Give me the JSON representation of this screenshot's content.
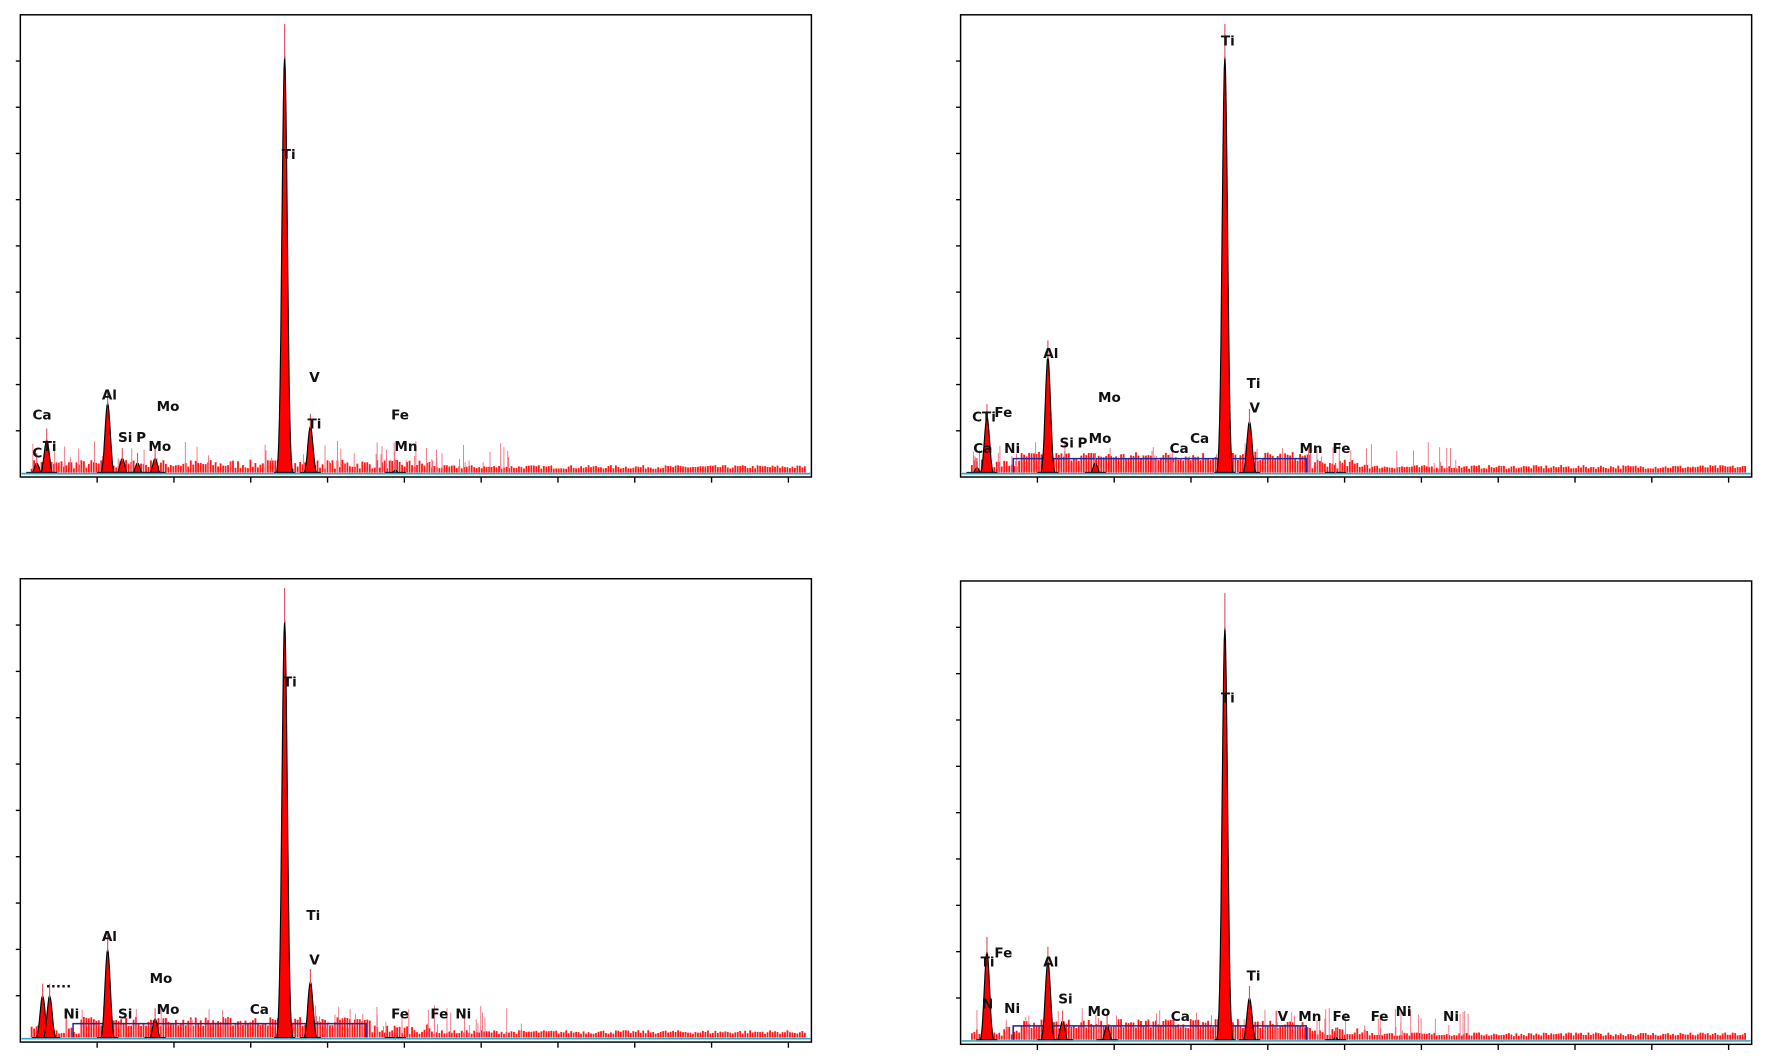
{
  "chart_data": [
    {
      "type": "area",
      "panel": "top-left",
      "xlim": [
        0,
        13.5
      ],
      "ylim": [
        0,
        1
      ],
      "grid": false,
      "colors": {
        "fill": "#ff0000",
        "outline": "#000000",
        "baseline": "#29a9c9",
        "continuum": "#1a2aa0"
      },
      "peaks": [
        {
          "x": 0.28,
          "y": 0.03
        },
        {
          "x": 0.45,
          "y": 0.08
        },
        {
          "x": 1.49,
          "y": 0.16
        },
        {
          "x": 1.74,
          "y": 0.04
        },
        {
          "x": 2.0,
          "y": 0.03
        },
        {
          "x": 2.3,
          "y": 0.04
        },
        {
          "x": 4.51,
          "y": 0.91
        },
        {
          "x": 4.95,
          "y": 0.11
        },
        {
          "x": 6.4,
          "y": 0.015
        }
      ],
      "labels": [
        {
          "text": "Ca",
          "x": 0.37,
          "y": 0.137
        },
        {
          "text": "Ti",
          "x": 0.5,
          "y": 0.068
        },
        {
          "text": "C",
          "x": 0.29,
          "y": 0.054
        },
        {
          "text": "Al",
          "x": 1.52,
          "y": 0.18
        },
        {
          "text": "Mo",
          "x": 2.52,
          "y": 0.155
        },
        {
          "text": "Si",
          "x": 1.79,
          "y": 0.088
        },
        {
          "text": "P",
          "x": 2.06,
          "y": 0.088
        },
        {
          "text": "Mo",
          "x": 2.38,
          "y": 0.068
        },
        {
          "text": "Ti",
          "x": 4.58,
          "y": 0.7
        },
        {
          "text": "V",
          "x": 5.02,
          "y": 0.218
        },
        {
          "text": "Ti",
          "x": 5.02,
          "y": 0.117
        },
        {
          "text": "Fe",
          "x": 6.48,
          "y": 0.137
        },
        {
          "text": "Mn",
          "x": 6.58,
          "y": 0.068
        }
      ]
    },
    {
      "type": "area",
      "panel": "top-right",
      "xlim": [
        0,
        13.5
      ],
      "ylim": [
        0,
        1
      ],
      "grid": false,
      "colors": {
        "fill": "#ff0000",
        "outline": "#000000",
        "baseline": "#29a9c9",
        "continuum": "#1a2aa0"
      },
      "peaks": [
        {
          "x": 0.28,
          "y": 0.02
        },
        {
          "x": 0.45,
          "y": 0.13
        },
        {
          "x": 1.49,
          "y": 0.26
        },
        {
          "x": 2.3,
          "y": 0.03
        },
        {
          "x": 4.51,
          "y": 0.91
        },
        {
          "x": 4.93,
          "y": 0.12
        },
        {
          "x": 6.4,
          "y": 0.01
        }
      ],
      "labels": [
        {
          "text": "Ti",
          "x": 4.56,
          "y": 0.946
        },
        {
          "text": "Al",
          "x": 1.54,
          "y": 0.27
        },
        {
          "text": "Mo",
          "x": 2.54,
          "y": 0.174
        },
        {
          "text": "Ti",
          "x": 5.0,
          "y": 0.205
        },
        {
          "text": "V",
          "x": 5.02,
          "y": 0.152
        },
        {
          "text": "CTi",
          "x": 0.4,
          "y": 0.132
        },
        {
          "text": "Fe",
          "x": 0.73,
          "y": 0.142
        },
        {
          "text": "Ca",
          "x": 0.38,
          "y": 0.064
        },
        {
          "text": "Ni",
          "x": 0.88,
          "y": 0.064
        },
        {
          "text": "Si",
          "x": 1.81,
          "y": 0.076
        },
        {
          "text": "P",
          "x": 2.08,
          "y": 0.076
        },
        {
          "text": "Mo",
          "x": 2.38,
          "y": 0.086
        },
        {
          "text": "Ca",
          "x": 3.73,
          "y": 0.064
        },
        {
          "text": "Ca",
          "x": 4.08,
          "y": 0.086
        },
        {
          "text": "Mn",
          "x": 5.98,
          "y": 0.064
        },
        {
          "text": "Fe",
          "x": 6.5,
          "y": 0.064
        }
      ]
    },
    {
      "type": "area",
      "panel": "bottom-left",
      "xlim": [
        0,
        13.5
      ],
      "ylim": [
        0,
        1
      ],
      "grid": false,
      "colors": {
        "fill": "#ff0000",
        "outline": "#000000",
        "baseline": "#29a9c9",
        "continuum": "#1a2aa0"
      },
      "peaks": [
        {
          "x": 0.38,
          "y": 0.1
        },
        {
          "x": 0.5,
          "y": 0.1
        },
        {
          "x": 1.49,
          "y": 0.2
        },
        {
          "x": 2.3,
          "y": 0.05
        },
        {
          "x": 4.51,
          "y": 0.91
        },
        {
          "x": 4.95,
          "y": 0.13
        },
        {
          "x": 6.4,
          "y": 0.01
        }
      ],
      "labels": [
        {
          "text": "Ti",
          "x": 4.6,
          "y": 0.78
        },
        {
          "text": "Ti",
          "x": 5.0,
          "y": 0.276
        },
        {
          "text": "V",
          "x": 5.02,
          "y": 0.18
        },
        {
          "text": "Al",
          "x": 1.52,
          "y": 0.23
        },
        {
          "text": "Mo",
          "x": 2.4,
          "y": 0.14
        },
        {
          "text": "Ni",
          "x": 0.87,
          "y": 0.063
        },
        {
          "text": "Si",
          "x": 1.79,
          "y": 0.063
        },
        {
          "text": "Mo",
          "x": 2.52,
          "y": 0.073
        },
        {
          "text": "Ca",
          "x": 4.08,
          "y": 0.073
        },
        {
          "text": "Fe",
          "x": 6.48,
          "y": 0.063
        },
        {
          "text": "Fe",
          "x": 7.15,
          "y": 0.063
        },
        {
          "text": "Ni",
          "x": 7.56,
          "y": 0.063
        },
        {
          "text": ".....",
          "x": 0.65,
          "y": 0.13
        }
      ]
    },
    {
      "type": "area",
      "panel": "bottom-right",
      "xlim": [
        0,
        13.5
      ],
      "ylim": [
        0,
        1
      ],
      "grid": false,
      "colors": {
        "fill": "#ff0000",
        "outline": "#000000",
        "baseline": "#29a9c9",
        "continuum": "#1a2aa0"
      },
      "peaks": [
        {
          "x": 0.45,
          "y": 0.2
        },
        {
          "x": 1.49,
          "y": 0.18
        },
        {
          "x": 1.74,
          "y": 0.05
        },
        {
          "x": 2.5,
          "y": 0.04
        },
        {
          "x": 4.51,
          "y": 0.9
        },
        {
          "x": 4.93,
          "y": 0.1
        },
        {
          "x": 6.4,
          "y": 0.015
        }
      ],
      "labels": [
        {
          "text": "Ti",
          "x": 4.56,
          "y": 0.75
        },
        {
          "text": "Ti",
          "x": 5.0,
          "y": 0.15
        },
        {
          "text": "Al",
          "x": 1.54,
          "y": 0.18
        },
        {
          "text": "Fe",
          "x": 0.73,
          "y": 0.2
        },
        {
          "text": "Ti",
          "x": 0.46,
          "y": 0.18
        },
        {
          "text": "N",
          "x": 0.46,
          "y": 0.09
        },
        {
          "text": "Ni",
          "x": 0.88,
          "y": 0.08
        },
        {
          "text": "Si",
          "x": 1.79,
          "y": 0.1
        },
        {
          "text": "Mo",
          "x": 2.36,
          "y": 0.073
        },
        {
          "text": "Ca",
          "x": 3.75,
          "y": 0.063
        },
        {
          "text": "V",
          "x": 5.5,
          "y": 0.063
        },
        {
          "text": "Mn",
          "x": 5.96,
          "y": 0.063
        },
        {
          "text": "Fe",
          "x": 6.5,
          "y": 0.063
        },
        {
          "text": "Fe",
          "x": 7.15,
          "y": 0.063
        },
        {
          "text": "Ni",
          "x": 7.56,
          "y": 0.073
        },
        {
          "text": "Ni",
          "x": 8.37,
          "y": 0.063
        }
      ]
    }
  ]
}
